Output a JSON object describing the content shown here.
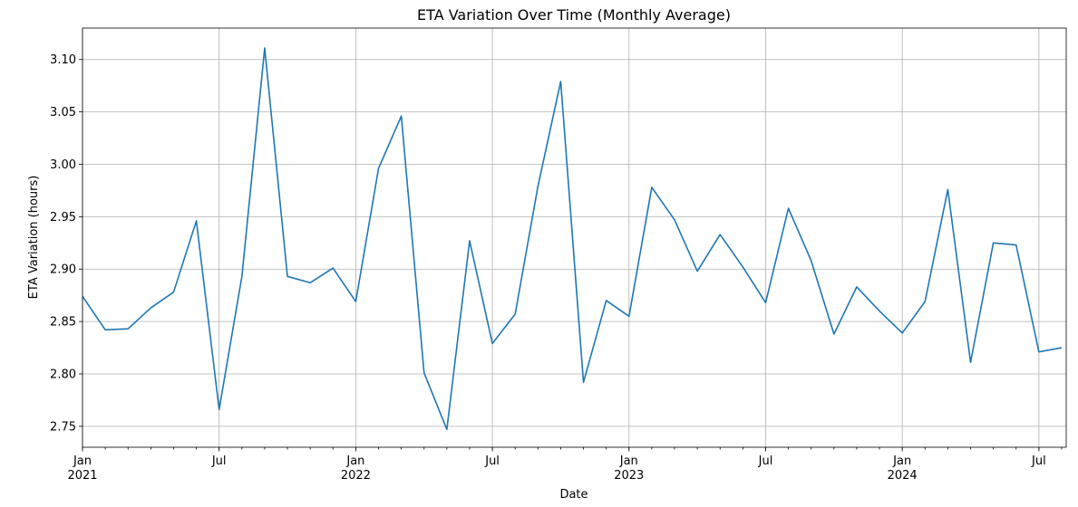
{
  "chart_data": {
    "type": "line",
    "title": "ETA Variation Over Time (Monthly Average)",
    "xlabel": "Date",
    "ylabel": "ETA Variation (hours)",
    "ylim": [
      2.73,
      3.13
    ],
    "xlim": [
      "2021-01",
      "2024-08"
    ],
    "grid": true,
    "yticks": [
      2.75,
      2.8,
      2.85,
      2.9,
      2.95,
      3.0,
      3.05,
      3.1
    ],
    "ytick_labels": [
      "2.75",
      "2.80",
      "2.85",
      "2.90",
      "2.95",
      "3.00",
      "3.05",
      "3.10"
    ],
    "xticks_major": [
      {
        "date": "2021-01",
        "label": "Jan",
        "sublabel": "2021"
      },
      {
        "date": "2021-07",
        "label": "Jul",
        "sublabel": ""
      },
      {
        "date": "2022-01",
        "label": "Jan",
        "sublabel": "2022"
      },
      {
        "date": "2022-07",
        "label": "Jul",
        "sublabel": ""
      },
      {
        "date": "2023-01",
        "label": "Jan",
        "sublabel": "2023"
      },
      {
        "date": "2023-07",
        "label": "Jul",
        "sublabel": ""
      },
      {
        "date": "2024-01",
        "label": "Jan",
        "sublabel": "2024"
      },
      {
        "date": "2024-07",
        "label": "Jul",
        "sublabel": ""
      }
    ],
    "series": [
      {
        "color": "#1f77b4",
        "x": [
          "2021-01",
          "2021-02",
          "2021-03",
          "2021-04",
          "2021-05",
          "2021-06",
          "2021-07",
          "2021-08",
          "2021-09",
          "2021-10",
          "2021-11",
          "2021-12",
          "2022-01",
          "2022-02",
          "2022-03",
          "2022-04",
          "2022-05",
          "2022-06",
          "2022-07",
          "2022-08",
          "2022-09",
          "2022-10",
          "2022-11",
          "2022-12",
          "2023-01",
          "2023-02",
          "2023-03",
          "2023-04",
          "2023-05",
          "2023-06",
          "2023-07",
          "2023-08",
          "2023-09",
          "2023-10",
          "2023-11",
          "2023-12",
          "2024-01",
          "2024-02",
          "2024-03",
          "2024-04",
          "2024-05",
          "2024-06",
          "2024-07",
          "2024-08"
        ],
        "values": [
          2.874,
          2.842,
          2.843,
          2.863,
          2.878,
          2.946,
          2.766,
          2.893,
          3.111,
          2.893,
          2.887,
          2.901,
          2.869,
          2.996,
          3.046,
          2.801,
          2.747,
          2.927,
          2.829,
          2.857,
          2.979,
          3.079,
          2.792,
          2.87,
          2.855,
          2.978,
          2.947,
          2.898,
          2.933,
          2.902,
          2.868,
          2.958,
          2.908,
          2.838,
          2.883,
          2.86,
          2.839,
          2.869,
          2.976,
          2.811,
          2.925,
          2.923,
          2.821,
          2.825
        ]
      }
    ]
  }
}
